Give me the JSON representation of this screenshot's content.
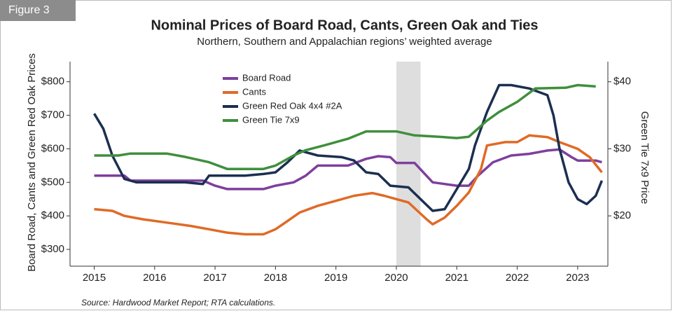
{
  "figure_label": "Figure 3",
  "source": "Source: Hardwood Market Report; RTA calculations.",
  "chart_data": {
    "type": "line",
    "title": "Nominal Prices of Board Road, Cants, Green Oak and Ties",
    "subtitle": "Northern, Southern and Appalachian regions’ weighted average",
    "ylabel": "Board Road, Cants and Green Red Oak Prices",
    "y2label": "Green Tie 7x9 Price",
    "xlim": [
      2014.6,
      2023.5
    ],
    "xticks": [
      2015,
      2016,
      2017,
      2018,
      2019,
      2020,
      2021,
      2022,
      2023
    ],
    "ylim": [
      250,
      860
    ],
    "yticks": [
      {
        "value": 300,
        "label": "$300"
      },
      {
        "value": 400,
        "label": "$400"
      },
      {
        "value": 500,
        "label": "$500"
      },
      {
        "value": 600,
        "label": "$600"
      },
      {
        "value": 700,
        "label": "$700"
      },
      {
        "value": 800,
        "label": "$800"
      }
    ],
    "y2lim": [
      12.5,
      43
    ],
    "y2ticks": [
      {
        "value": 20,
        "label": "$20"
      },
      {
        "value": 30,
        "label": "$30"
      },
      {
        "value": 40,
        "label": "$40"
      }
    ],
    "shaded_region": [
      2020.0,
      2020.4
    ],
    "legend": "top-left",
    "series": [
      {
        "name": "Board Road",
        "color": "#7e3f9d",
        "x": [
          2015,
          2015.5,
          2015.6,
          2016.8,
          2017.0,
          2017.2,
          2017.8,
          2018.0,
          2018.3,
          2018.5,
          2018.7,
          2019.2,
          2019.5,
          2019.7,
          2019.9,
          2020.0,
          2020.3,
          2020.6,
          2020.8,
          2021.0,
          2021.2,
          2021.35,
          2021.6,
          2021.9,
          2022.2,
          2022.5,
          2022.7,
          2022.9,
          2023.0,
          2023.3,
          2023.4
        ],
        "values": [
          520,
          520,
          505,
          505,
          490,
          480,
          480,
          490,
          500,
          520,
          550,
          550,
          570,
          578,
          575,
          558,
          558,
          500,
          495,
          490,
          490,
          520,
          560,
          580,
          585,
          595,
          598,
          575,
          565,
          565,
          560
        ]
      },
      {
        "name": "Cants",
        "color": "#e06a26",
        "x": [
          2015,
          2015.3,
          2015.5,
          2015.8,
          2016.2,
          2016.6,
          2016.9,
          2017.2,
          2017.5,
          2017.8,
          2018.0,
          2018.2,
          2018.4,
          2018.7,
          2019.0,
          2019.3,
          2019.6,
          2019.8,
          2020.0,
          2020.2,
          2020.5,
          2020.6,
          2020.8,
          2021.0,
          2021.2,
          2021.4,
          2021.5,
          2021.8,
          2022.0,
          2022.2,
          2022.5,
          2022.7,
          2023.0,
          2023.2,
          2023.4
        ],
        "values": [
          420,
          415,
          400,
          390,
          380,
          370,
          360,
          350,
          345,
          345,
          360,
          385,
          410,
          430,
          445,
          460,
          468,
          460,
          450,
          440,
          390,
          375,
          395,
          430,
          470,
          540,
          610,
          620,
          620,
          640,
          635,
          620,
          600,
          575,
          530
        ]
      },
      {
        "name": "Green Red Oak 4x4 #2A",
        "color": "#1b2f50",
        "x": [
          2015,
          2015.15,
          2015.3,
          2015.5,
          2015.7,
          2016.5,
          2016.8,
          2016.9,
          2017.5,
          2017.8,
          2018.0,
          2018.2,
          2018.4,
          2018.7,
          2019.1,
          2019.3,
          2019.5,
          2019.7,
          2019.9,
          2020.2,
          2020.4,
          2020.6,
          2020.8,
          2021.0,
          2021.2,
          2021.3,
          2021.5,
          2021.7,
          2021.9,
          2022.2,
          2022.5,
          2022.6,
          2022.7,
          2022.85,
          2023.0,
          2023.15,
          2023.3,
          2023.4
        ],
        "values": [
          705,
          660,
          580,
          510,
          500,
          500,
          495,
          520,
          520,
          525,
          530,
          560,
          595,
          580,
          575,
          565,
          530,
          525,
          490,
          485,
          450,
          415,
          420,
          480,
          540,
          610,
          710,
          790,
          790,
          780,
          760,
          700,
          600,
          500,
          450,
          435,
          460,
          505
        ]
      },
      {
        "name": "Green Tie 7x9",
        "color": "#3f8f3c",
        "axis": "y2",
        "x": [
          2015,
          2015.4,
          2015.6,
          2016.2,
          2016.5,
          2016.9,
          2017.2,
          2017.8,
          2018.0,
          2018.3,
          2018.5,
          2018.8,
          2019.2,
          2019.5,
          2020.0,
          2020.3,
          2020.7,
          2021.0,
          2021.2,
          2021.5,
          2021.7,
          2022.0,
          2022.3,
          2022.8,
          2023.0,
          2023.3
        ],
        "values": [
          29,
          29,
          29.3,
          29.3,
          28.8,
          28,
          27,
          27,
          27.5,
          29,
          29.8,
          30.5,
          31.5,
          32.6,
          32.6,
          32,
          31.8,
          31.6,
          31.8,
          34.2,
          35.5,
          37,
          39,
          39.1,
          39.5,
          39.3
        ]
      }
    ]
  }
}
